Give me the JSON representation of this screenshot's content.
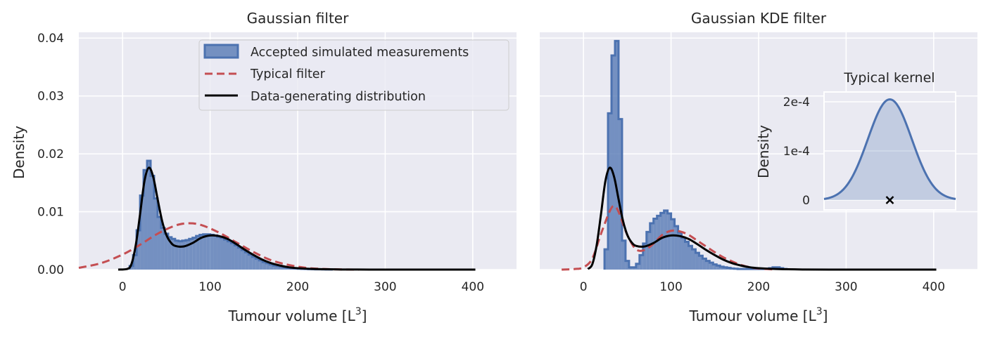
{
  "chart_data": [
    {
      "type": "histogram+line",
      "title": "Gaussian filter",
      "xlabel": "Tumour volume [L",
      "xlabel_sup": "3",
      "xlabel_suffix": "]",
      "ylabel": "Density",
      "xlim": [
        -50,
        450
      ],
      "ylim": [
        0,
        0.041
      ],
      "xticks": [
        0,
        100,
        200,
        300,
        400
      ],
      "xtick_labels": [
        "0",
        "100",
        "200",
        "300",
        "400"
      ],
      "yticks": [
        0,
        0.01,
        0.02,
        0.03,
        0.04
      ],
      "ytick_labels": [
        "0.00",
        "0.01",
        "0.02",
        "0.03",
        "0.04"
      ],
      "grid": true,
      "legend": {
        "placement": "upper right",
        "entries": [
          {
            "label": "Accepted simulated measurements",
            "kind": "patch",
            "color": "#4c72b0"
          },
          {
            "label": "Typical filter",
            "kind": "dashed",
            "color": "#c44e52"
          },
          {
            "label": "Data-generating distribution",
            "kind": "line",
            "color": "#000000"
          }
        ]
      },
      "histogram": {
        "color": "#4c72b0",
        "bin_edges": [
          8,
          12,
          16,
          20,
          24,
          28,
          32,
          36,
          40,
          44,
          48,
          52,
          56,
          60,
          64,
          68,
          72,
          76,
          80,
          84,
          88,
          92,
          96,
          100,
          104,
          108,
          112,
          116,
          120,
          124,
          128,
          132,
          136,
          140,
          144,
          148,
          152,
          156,
          160,
          164,
          168,
          172,
          176,
          180,
          184,
          188,
          192,
          196,
          200,
          204,
          208,
          212,
          216,
          220,
          224,
          228,
          232,
          236,
          240
        ],
        "densities": [
          0.0006,
          0.0025,
          0.0068,
          0.0128,
          0.0172,
          0.0188,
          0.0162,
          0.0123,
          0.0091,
          0.0072,
          0.0062,
          0.0056,
          0.0053,
          0.005,
          0.0049,
          0.005,
          0.0051,
          0.0053,
          0.0055,
          0.0058,
          0.006,
          0.0061,
          0.0061,
          0.006,
          0.0059,
          0.0057,
          0.0055,
          0.0052,
          0.0049,
          0.0046,
          0.0042,
          0.0038,
          0.0034,
          0.003,
          0.0026,
          0.0022,
          0.0019,
          0.0016,
          0.0013,
          0.0011,
          0.0009,
          0.0007,
          0.0006,
          0.0005,
          0.0004,
          0.0003,
          0.00025,
          0.0002,
          0.00015,
          0.00012,
          0.0001,
          8e-05,
          6e-05,
          5e-05,
          4e-05,
          3e-05,
          2e-05,
          1e-05
        ]
      },
      "series": [
        {
          "name": "Typical filter",
          "style": "dashed",
          "color": "#c44e52",
          "x": [
            -50,
            -25,
            0,
            20,
            40,
            60,
            75,
            90,
            110,
            130,
            150,
            170,
            190,
            210,
            230,
            250,
            270
          ],
          "y": [
            0.0003,
            0.0011,
            0.0026,
            0.0043,
            0.0062,
            0.0076,
            0.008,
            0.0077,
            0.0064,
            0.0047,
            0.003,
            0.0016,
            0.0008,
            0.0003,
            0.0001,
            3e-05,
            0.0
          ]
        },
        {
          "name": "Data-generating distribution",
          "style": "solid",
          "color": "#000000",
          "x": [
            -5,
            5,
            10,
            15,
            20,
            25,
            30,
            35,
            40,
            45,
            50,
            55,
            60,
            70,
            80,
            90,
            100,
            110,
            120,
            130,
            140,
            150,
            160,
            170,
            180,
            190,
            200,
            220,
            250,
            300,
            350,
            403
          ],
          "y": [
            0.0,
            0.0001,
            0.0009,
            0.0042,
            0.0096,
            0.0153,
            0.0176,
            0.016,
            0.0122,
            0.0085,
            0.006,
            0.0047,
            0.0041,
            0.004,
            0.0046,
            0.0055,
            0.0059,
            0.0058,
            0.0053,
            0.0044,
            0.0034,
            0.0025,
            0.0017,
            0.0011,
            0.0007,
            0.0004,
            0.00025,
            0.0001,
            2e-05,
            0.0,
            0.0,
            0.0
          ]
        }
      ]
    },
    {
      "type": "histogram+line",
      "title": "Gaussian KDE filter",
      "xlabel": "Tumour volume [L",
      "xlabel_sup": "3",
      "xlabel_suffix": "]",
      "xlim": [
        -50,
        450
      ],
      "ylim": [
        0,
        0.041
      ],
      "xticks": [
        0,
        100,
        200,
        300,
        400
      ],
      "xtick_labels": [
        "0",
        "100",
        "200",
        "300",
        "400"
      ],
      "grid": true,
      "histogram": {
        "color": "#4c72b0",
        "bin_edges": [
          24,
          28,
          32,
          36,
          40,
          44,
          48,
          52,
          56,
          60,
          64,
          68,
          72,
          76,
          80,
          84,
          88,
          92,
          96,
          100,
          104,
          108,
          112,
          116,
          120,
          124,
          128,
          132,
          136,
          140,
          144,
          148,
          152,
          156,
          160,
          164,
          168,
          172,
          176,
          180,
          184,
          188,
          192,
          196,
          200,
          204,
          208,
          212,
          216,
          220,
          224,
          228,
          232
        ],
        "densities": [
          0.0035,
          0.027,
          0.037,
          0.0395,
          0.026,
          0.005,
          0.0015,
          0.0004,
          0.0004,
          0.001,
          0.0025,
          0.0045,
          0.0065,
          0.008,
          0.0088,
          0.0093,
          0.0098,
          0.0102,
          0.0097,
          0.0087,
          0.0075,
          0.0064,
          0.0055,
          0.0048,
          0.0041,
          0.0035,
          0.0029,
          0.0024,
          0.0019,
          0.0015,
          0.0012,
          0.0009,
          0.0007,
          0.0005,
          0.0004,
          0.0003,
          0.0002,
          0.00015,
          0.0001,
          0.0001,
          0.0001,
          0.0001,
          0.0001,
          0.0001,
          0.0001,
          0.0001,
          0.00015,
          0.00025,
          0.0004,
          0.0004,
          0.00025,
          0.0001
        ]
      },
      "series": [
        {
          "name": "Typical filter",
          "style": "dashed",
          "color": "#c44e52",
          "x": [
            -25,
            -10,
            0,
            10,
            20,
            30,
            35,
            40,
            50,
            60,
            70,
            80,
            90,
            100,
            110,
            120,
            130,
            140,
            150,
            160,
            170,
            180,
            190,
            200,
            220
          ],
          "y": [
            0.0,
            0.0001,
            0.0004,
            0.0019,
            0.0062,
            0.0101,
            0.011,
            0.01,
            0.006,
            0.0035,
            0.0034,
            0.0045,
            0.006,
            0.0067,
            0.0066,
            0.006,
            0.005,
            0.004,
            0.003,
            0.0021,
            0.0014,
            0.0008,
            0.0004,
            0.0002,
            0.0
          ]
        },
        {
          "name": "Data-generating distribution",
          "style": "solid",
          "color": "#000000",
          "x": [
            5,
            10,
            15,
            20,
            25,
            30,
            35,
            40,
            45,
            50,
            55,
            60,
            70,
            80,
            90,
            100,
            110,
            120,
            130,
            140,
            150,
            160,
            170,
            180,
            190,
            200,
            220,
            250,
            300,
            350,
            403
          ],
          "y": [
            0.0001,
            0.0009,
            0.0042,
            0.0096,
            0.0153,
            0.0176,
            0.016,
            0.0122,
            0.0085,
            0.006,
            0.0047,
            0.0041,
            0.004,
            0.0046,
            0.0055,
            0.0059,
            0.0058,
            0.0053,
            0.0044,
            0.0034,
            0.0025,
            0.0017,
            0.0011,
            0.0007,
            0.0004,
            0.00025,
            0.0001,
            2e-05,
            0.0,
            0.0,
            0.0
          ]
        }
      ],
      "inset": {
        "type": "area",
        "title": "Typical kernel",
        "ylabel": "Density",
        "yticks": [
          0,
          0.0001,
          0.0002
        ],
        "ytick_labels": [
          "0",
          "1e-4",
          "2e-4"
        ],
        "ylim": [
          -2e-05,
          0.00022
        ],
        "xlim": [
          -3,
          3
        ],
        "color": "#4c72b0",
        "peak": 0.000205,
        "marker": {
          "symbol": "x",
          "x": 0,
          "y": 0,
          "color": "#000000"
        }
      }
    }
  ]
}
